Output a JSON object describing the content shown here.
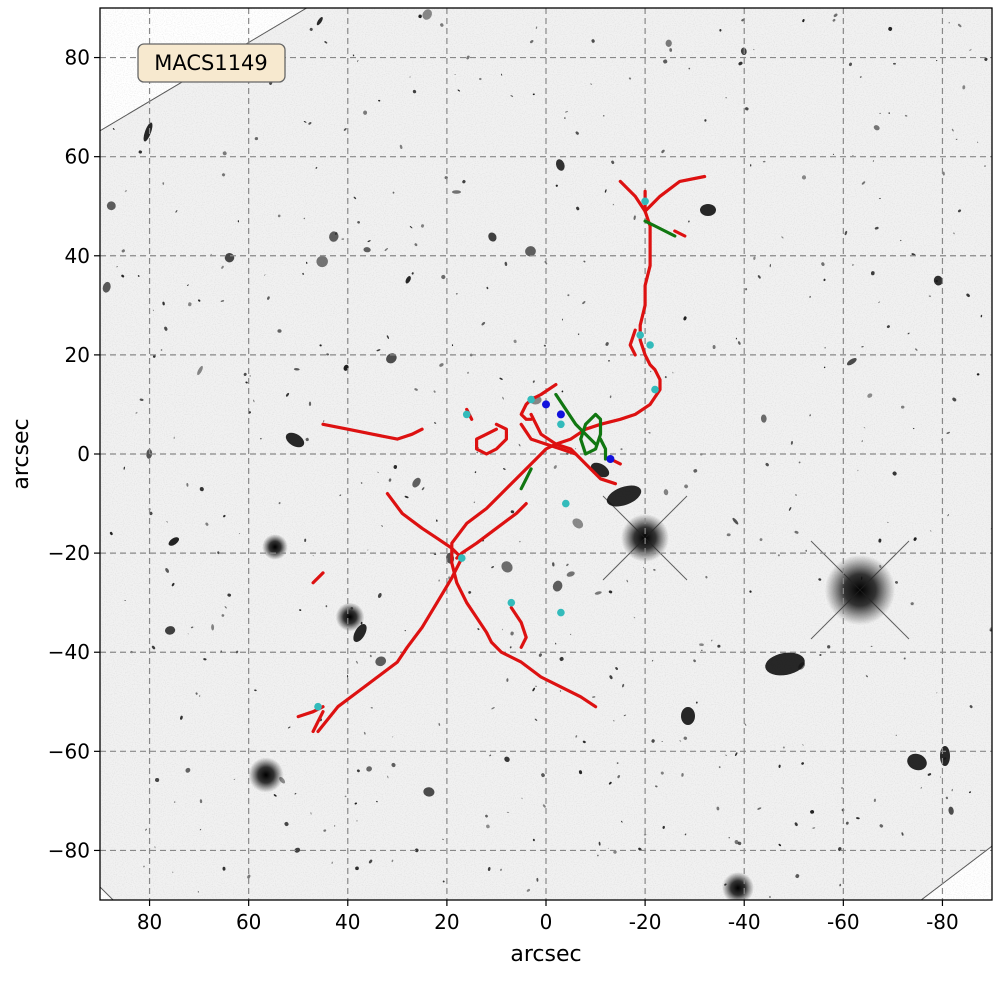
{
  "chart_data": {
    "type": "scatter",
    "title": "",
    "annotation": "MACS1149",
    "xlabel": "arcsec",
    "ylabel": "arcsec",
    "xlim": [
      90,
      -90
    ],
    "ylim": [
      -90,
      90
    ],
    "x_ticks": [
      80,
      60,
      40,
      20,
      0,
      -20,
      -40,
      -60,
      -80
    ],
    "y_ticks": [
      80,
      60,
      40,
      20,
      0,
      -20,
      -40,
      -60,
      -80
    ],
    "x_tick_labels": [
      "80",
      "60",
      "40",
      "20",
      "0",
      "-20",
      "-40",
      "-60",
      "-80"
    ],
    "y_tick_labels": [
      "80",
      "60",
      "40",
      "20",
      "0",
      "−20",
      "−40",
      "−60",
      "−80"
    ],
    "grid": true,
    "background": "inverted-grayscale sky image",
    "colors": {
      "critical_curve": "#dd1111",
      "caustic": "#117711",
      "cyan_point": "#33bbbb",
      "blue_point": "#1111dd",
      "grid": "#888888"
    },
    "critical_curves": [
      [
        [
          -15,
          55
        ],
        [
          -18,
          52
        ],
        [
          -20,
          49
        ],
        [
          -21,
          46
        ],
        [
          -21,
          42
        ],
        [
          -21,
          38
        ],
        [
          -20,
          34
        ],
        [
          -20,
          30
        ],
        [
          -19,
          26
        ],
        [
          -19,
          23
        ],
        [
          -20,
          20
        ],
        [
          -21,
          18
        ],
        [
          -22,
          17
        ],
        [
          -23,
          15
        ],
        [
          -23,
          13
        ],
        [
          -21,
          10
        ],
        [
          -18,
          8
        ],
        [
          -15,
          7
        ],
        [
          -11,
          6
        ],
        [
          -8,
          5
        ],
        [
          -5,
          3
        ],
        [
          -2,
          2
        ],
        [
          0,
          1
        ],
        [
          2,
          -1
        ],
        [
          4,
          -3
        ],
        [
          6,
          -5
        ],
        [
          9,
          -8
        ],
        [
          12,
          -11
        ],
        [
          16,
          -14
        ],
        [
          19,
          -18
        ],
        [
          19,
          -22
        ],
        [
          18,
          -26
        ],
        [
          16,
          -30
        ],
        [
          14,
          -33
        ],
        [
          12,
          -36
        ],
        [
          11,
          -38
        ],
        [
          9,
          -40
        ],
        [
          5,
          -42
        ],
        [
          1,
          -45
        ],
        [
          -3,
          -47
        ],
        [
          -7,
          -49
        ],
        [
          -10,
          -51
        ]
      ],
      [
        [
          -20,
          53
        ],
        [
          -20,
          51
        ],
        [
          -20,
          49
        ]
      ],
      [
        [
          -20,
          49
        ],
        [
          -23,
          52
        ],
        [
          -27,
          55
        ],
        [
          -32,
          56
        ]
      ],
      [
        [
          -26,
          45
        ],
        [
          -28,
          44
        ]
      ],
      [
        [
          -18,
          25
        ],
        [
          -17,
          22
        ],
        [
          -18,
          20
        ]
      ],
      [
        [
          -2,
          14
        ],
        [
          1,
          12
        ],
        [
          3,
          11
        ],
        [
          4,
          10
        ],
        [
          5,
          8
        ],
        [
          4,
          7
        ],
        [
          3,
          7
        ]
      ],
      [
        [
          3,
          8
        ],
        [
          2,
          6
        ],
        [
          1,
          4
        ],
        [
          -2,
          2
        ],
        [
          -5,
          1
        ],
        [
          -8,
          -2
        ],
        [
          -11,
          -5
        ],
        [
          -14,
          -6
        ]
      ],
      [
        [
          4,
          -10
        ],
        [
          6,
          -12
        ],
        [
          10,
          -15
        ],
        [
          14,
          -18
        ],
        [
          17,
          -20
        ],
        [
          18,
          -21
        ]
      ],
      [
        [
          17,
          -21
        ],
        [
          19,
          -25
        ],
        [
          22,
          -30
        ],
        [
          25,
          -35
        ],
        [
          28,
          -39
        ],
        [
          30,
          -42
        ],
        [
          34,
          -45
        ],
        [
          38,
          -48
        ],
        [
          42,
          -51
        ],
        [
          46,
          -56
        ]
      ],
      [
        [
          17,
          -21
        ],
        [
          19,
          -19
        ],
        [
          22,
          -17
        ],
        [
          25,
          -15
        ],
        [
          29,
          -12
        ],
        [
          32,
          -8
        ]
      ],
      [
        [
          5,
          6
        ],
        [
          3,
          3
        ],
        [
          0,
          2
        ],
        [
          -3,
          1
        ],
        [
          -6,
          0
        ]
      ],
      [
        [
          10,
          5
        ],
        [
          12,
          4
        ],
        [
          14,
          3
        ],
        [
          14,
          1
        ],
        [
          12,
          0
        ],
        [
          10,
          1
        ],
        [
          8,
          3
        ],
        [
          8,
          5
        ],
        [
          10,
          6
        ]
      ],
      [
        [
          16,
          9
        ],
        [
          15,
          7
        ]
      ],
      [
        [
          45,
          6
        ],
        [
          40,
          5
        ],
        [
          35,
          4
        ],
        [
          30,
          3
        ],
        [
          27,
          4
        ],
        [
          25,
          5
        ]
      ],
      [
        [
          47,
          -26
        ],
        [
          45,
          -24
        ]
      ],
      [
        [
          50,
          -53
        ],
        [
          47,
          -52
        ],
        [
          45,
          -51
        ]
      ],
      [
        [
          47,
          -56
        ],
        [
          46,
          -54
        ],
        [
          45,
          -52
        ]
      ],
      [
        [
          7,
          -31
        ],
        [
          5,
          -34
        ],
        [
          4,
          -37
        ],
        [
          5,
          -39
        ]
      ],
      [
        [
          -13,
          -1
        ],
        [
          -15,
          -2
        ]
      ]
    ],
    "caustics": [
      [
        [
          -20,
          47
        ],
        [
          -22,
          46
        ],
        [
          -24,
          45
        ],
        [
          -26,
          44
        ]
      ],
      [
        [
          -2,
          12
        ],
        [
          -4,
          9
        ],
        [
          -6,
          6
        ],
        [
          -8,
          4
        ],
        [
          -10,
          2
        ]
      ],
      [
        [
          -8,
          6
        ],
        [
          -10,
          8
        ],
        [
          -11,
          7
        ],
        [
          -11,
          4
        ],
        [
          -10,
          1
        ],
        [
          -8,
          0
        ],
        [
          -7,
          3
        ],
        [
          -8,
          6
        ]
      ],
      [
        [
          -11,
          3
        ],
        [
          -12,
          1
        ],
        [
          -12,
          -1
        ]
      ],
      [
        [
          3,
          -3
        ],
        [
          4,
          -5
        ],
        [
          5,
          -7
        ]
      ]
    ],
    "cyan_points": [
      [
        -20,
        51
      ],
      [
        -19,
        24
      ],
      [
        -21,
        22
      ],
      [
        -22,
        13
      ],
      [
        3,
        11
      ],
      [
        -3,
        6
      ],
      [
        16,
        8
      ],
      [
        -4,
        -10
      ],
      [
        17,
        -21
      ],
      [
        7,
        -30
      ],
      [
        -3,
        -32
      ],
      [
        46,
        -51
      ]
    ],
    "blue_points": [
      [
        0,
        10
      ],
      [
        -3,
        8
      ],
      [
        -13,
        -1
      ]
    ]
  }
}
